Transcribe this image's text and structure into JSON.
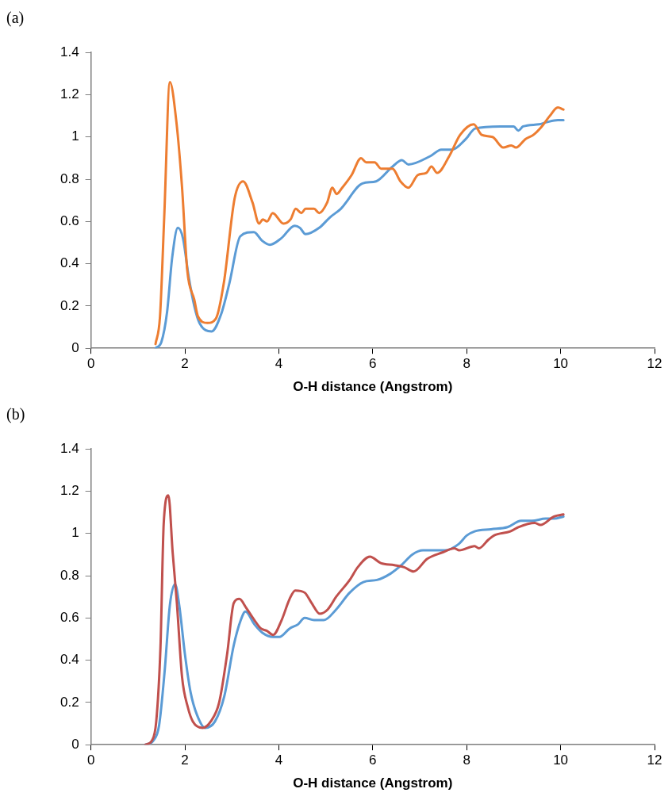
{
  "chart_data": [
    {
      "type": "line",
      "title": "(a)",
      "xlabel": "O-H distance (Angstrom)",
      "xlim": [
        0,
        12
      ],
      "xticks": [
        0,
        2,
        4,
        6,
        8,
        10,
        12
      ],
      "ylim": [
        0,
        1.4
      ],
      "yticks": [
        {
          "value": 0,
          "label": "0"
        },
        {
          "value": 0.2,
          "label": "0.2"
        },
        {
          "value": 0.4,
          "label": "0.4"
        },
        {
          "value": 0.6,
          "label": "0.6"
        },
        {
          "value": 0.8,
          "label": "0.8"
        },
        {
          "value": 1,
          "label": "1"
        },
        {
          "value": 1.2,
          "label": "1.2"
        },
        {
          "value": 1.4,
          "label": "1.4"
        }
      ],
      "grid": false,
      "legend": false,
      "series": [
        {
          "color": "#ed7d31",
          "x": [
            1.375,
            1.47,
            1.56,
            1.68,
            1.82,
            1.94,
            2.05,
            2.2,
            2.28,
            2.48,
            2.66,
            2.83,
            3.06,
            3.24,
            3.44,
            3.58,
            3.66,
            3.75,
            3.87,
            4.1,
            4.25,
            4.36,
            4.48,
            4.57,
            4.75,
            4.86,
            5.03,
            5.14,
            5.23,
            5.35,
            5.55,
            5.75,
            5.86,
            6.04,
            6.18,
            6.42,
            6.59,
            6.76,
            6.96,
            7.14,
            7.25,
            7.37,
            7.63,
            7.86,
            8.15,
            8.32,
            8.55,
            8.78,
            8.95,
            9.05,
            9.25,
            9.42,
            9.6,
            9.77,
            9.94,
            10.06
          ],
          "values": [
            0.02,
            0.15,
            0.62,
            1.26,
            1.07,
            0.76,
            0.37,
            0.23,
            0.15,
            0.12,
            0.14,
            0.31,
            0.71,
            0.79,
            0.69,
            0.59,
            0.61,
            0.6,
            0.64,
            0.59,
            0.61,
            0.66,
            0.64,
            0.66,
            0.66,
            0.64,
            0.69,
            0.76,
            0.73,
            0.76,
            0.82,
            0.9,
            0.88,
            0.88,
            0.85,
            0.85,
            0.79,
            0.76,
            0.82,
            0.83,
            0.86,
            0.83,
            0.91,
            1.01,
            1.06,
            1.01,
            1,
            0.95,
            0.96,
            0.95,
            0.99,
            1.01,
            1.05,
            1.1,
            1.14,
            1.13
          ]
        },
        {
          "color": "#5b9bd5",
          "x": [
            1.375,
            1.5,
            1.62,
            1.73,
            1.85,
            1.96,
            2.08,
            2.2,
            2.31,
            2.57,
            2.77,
            2.95,
            3.18,
            3.47,
            3.64,
            3.81,
            4.05,
            4.34,
            4.45,
            4.57,
            4.86,
            5.09,
            5.32,
            5.78,
            6.07,
            6.42,
            6.62,
            6.76,
            7.23,
            7.46,
            7.69,
            7.98,
            8.18,
            8.72,
            9,
            9.1,
            9.2,
            9.54,
            9.7,
            9.94,
            10.06
          ],
          "values": [
            0,
            0.03,
            0.17,
            0.43,
            0.57,
            0.52,
            0.34,
            0.2,
            0.12,
            0.08,
            0.16,
            0.31,
            0.53,
            0.55,
            0.51,
            0.49,
            0.52,
            0.58,
            0.57,
            0.54,
            0.57,
            0.62,
            0.66,
            0.78,
            0.79,
            0.86,
            0.89,
            0.87,
            0.91,
            0.94,
            0.94,
            0.99,
            1.04,
            1.05,
            1.05,
            1.03,
            1.05,
            1.06,
            1.07,
            1.08,
            1.08
          ]
        }
      ]
    },
    {
      "type": "line",
      "title": "(b)",
      "xlabel": "O-H distance (Angstrom)",
      "xlim": [
        0,
        12
      ],
      "xticks": [
        0,
        2,
        4,
        6,
        8,
        10,
        12
      ],
      "ylim": [
        0,
        1.4
      ],
      "yticks": [
        {
          "value": 0,
          "label": "0"
        },
        {
          "value": 0.2,
          "label": "0.2"
        },
        {
          "value": 0.4,
          "label": "0.4"
        },
        {
          "value": 0.6,
          "label": "0.6"
        },
        {
          "value": 0.8,
          "label": "0.8"
        },
        {
          "value": 1,
          "label": "1"
        },
        {
          "value": 1.2,
          "label": "1.2"
        },
        {
          "value": 1.4,
          "label": "1.4"
        }
      ],
      "grid": false,
      "legend": false,
      "series": [
        {
          "color": "#c0504d",
          "x": [
            1.16,
            1.3,
            1.39,
            1.48,
            1.55,
            1.65,
            1.74,
            1.83,
            1.94,
            2.06,
            2.17,
            2.38,
            2.55,
            2.73,
            2.9,
            3.04,
            3.16,
            3.3,
            3.48,
            3.62,
            3.74,
            3.88,
            4.06,
            4.23,
            4.35,
            4.55,
            4.7,
            4.87,
            5.04,
            5.22,
            5.51,
            5.68,
            5.94,
            6.17,
            6.46,
            6.67,
            6.87,
            7.16,
            7.48,
            7.74,
            7.84,
            8.17,
            8.26,
            8.46,
            8.58,
            8.93,
            9.1,
            9.45,
            9.57,
            9.86,
            10.06
          ],
          "values": [
            0,
            0.02,
            0.11,
            0.46,
            1.05,
            1.18,
            0.91,
            0.67,
            0.32,
            0.18,
            0.11,
            0.08,
            0.11,
            0.2,
            0.43,
            0.67,
            0.69,
            0.65,
            0.59,
            0.55,
            0.54,
            0.52,
            0.59,
            0.69,
            0.73,
            0.72,
            0.67,
            0.62,
            0.64,
            0.7,
            0.78,
            0.84,
            0.89,
            0.86,
            0.85,
            0.84,
            0.82,
            0.88,
            0.91,
            0.93,
            0.92,
            0.94,
            0.93,
            0.97,
            0.99,
            1.01,
            1.03,
            1.05,
            1.04,
            1.08,
            1.09
          ]
        },
        {
          "color": "#5b9bd5",
          "x": [
            1.16,
            1.33,
            1.45,
            1.57,
            1.68,
            1.79,
            1.88,
            2,
            2.12,
            2.26,
            2.43,
            2.64,
            2.84,
            3.04,
            3.19,
            3.29,
            3.48,
            3.65,
            3.88,
            4.01,
            4.23,
            4.41,
            4.55,
            4.75,
            4.96,
            5.22,
            5.51,
            5.8,
            6.09,
            6.38,
            6.61,
            6.84,
            7.07,
            7.36,
            7.54,
            7.83,
            8,
            8.17,
            8.52,
            8.87,
            9.16,
            9.39,
            9.68,
            9.86,
            10.06
          ],
          "values": [
            0,
            0.02,
            0.09,
            0.35,
            0.66,
            0.76,
            0.66,
            0.43,
            0.25,
            0.14,
            0.08,
            0.11,
            0.23,
            0.47,
            0.59,
            0.63,
            0.57,
            0.53,
            0.51,
            0.51,
            0.55,
            0.57,
            0.6,
            0.59,
            0.59,
            0.64,
            0.72,
            0.77,
            0.78,
            0.81,
            0.85,
            0.9,
            0.92,
            0.92,
            0.92,
            0.95,
            0.99,
            1.01,
            1.02,
            1.03,
            1.06,
            1.06,
            1.07,
            1.07,
            1.08
          ]
        }
      ]
    }
  ]
}
